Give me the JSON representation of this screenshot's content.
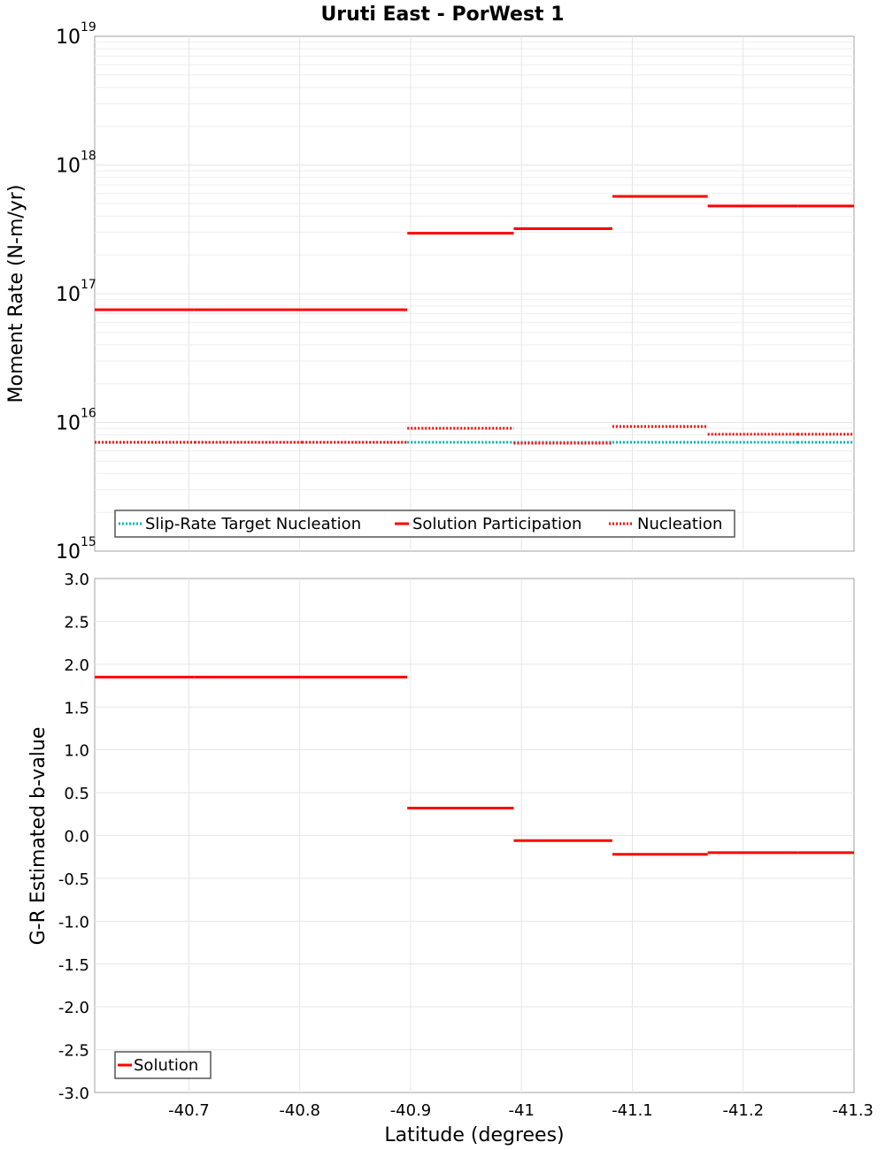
{
  "chart_data": [
    {
      "type": "line",
      "title": "Uruti East - PorWest 1",
      "xlabel": "",
      "ylabel": "Moment Rate (N-m/yr)",
      "yscale": "log",
      "xlim": [
        -40.615,
        -41.3
      ],
      "ylim": [
        1000000000000000.0,
        1e+19
      ],
      "y_ticks": [
        {
          "base": "10",
          "exp": "15"
        },
        {
          "base": "10",
          "exp": "16"
        },
        {
          "base": "10",
          "exp": "17"
        },
        {
          "base": "10",
          "exp": "18"
        },
        {
          "base": "10",
          "exp": "19"
        }
      ],
      "grid": true,
      "legend": {
        "placement": "bottom-left",
        "entries": [
          "Slip-Rate Target Nucleation",
          "Solution Participation",
          "Nucleation"
        ]
      },
      "series": [
        {
          "name": "Slip-Rate Target Nucleation",
          "color": "#00b4b4",
          "style": "dotted",
          "segments": [
            {
              "x0": -40.615,
              "x1": -40.705,
              "y": 7000000000000000.0
            },
            {
              "x0": -40.705,
              "x1": -40.802,
              "y": 7000000000000000.0
            },
            {
              "x0": -40.802,
              "x1": -40.897,
              "y": 7000000000000000.0
            },
            {
              "x0": -40.897,
              "x1": -40.993,
              "y": 7000000000000000.0
            },
            {
              "x0": -40.993,
              "x1": -41.082,
              "y": 7000000000000000.0
            },
            {
              "x0": -41.082,
              "x1": -41.168,
              "y": 7000000000000000.0
            },
            {
              "x0": -41.168,
              "x1": -41.249,
              "y": 7000000000000000.0
            },
            {
              "x0": -41.249,
              "x1": -41.3,
              "y": 7000000000000000.0
            }
          ]
        },
        {
          "name": "Solution Participation",
          "color": "#ff0000",
          "style": "solid",
          "segments": [
            {
              "x0": -40.615,
              "x1": -40.705,
              "y": 7.5e+16
            },
            {
              "x0": -40.705,
              "x1": -40.802,
              "y": 7.5e+16
            },
            {
              "x0": -40.802,
              "x1": -40.897,
              "y": 7.5e+16
            },
            {
              "x0": -40.897,
              "x1": -40.993,
              "y": 2.95e+17
            },
            {
              "x0": -40.993,
              "x1": -41.082,
              "y": 3.2e+17
            },
            {
              "x0": -41.082,
              "x1": -41.168,
              "y": 5.7e+17
            },
            {
              "x0": -41.168,
              "x1": -41.249,
              "y": 4.8e+17
            },
            {
              "x0": -41.249,
              "x1": -41.3,
              "y": 4.8e+17
            }
          ]
        },
        {
          "name": "Nucleation",
          "color": "#ff0000",
          "style": "dotted",
          "segments": [
            {
              "x0": -40.615,
              "x1": -40.705,
              "y": 7000000000000000.0
            },
            {
              "x0": -40.705,
              "x1": -40.802,
              "y": 7000000000000000.0
            },
            {
              "x0": -40.802,
              "x1": -40.897,
              "y": 7000000000000000.0
            },
            {
              "x0": -40.897,
              "x1": -40.993,
              "y": 9000000000000000.0
            },
            {
              "x0": -40.993,
              "x1": -41.082,
              "y": 6900000000000000.0
            },
            {
              "x0": -41.082,
              "x1": -41.168,
              "y": 9300000000000000.0
            },
            {
              "x0": -41.168,
              "x1": -41.249,
              "y": 8100000000000000.0
            },
            {
              "x0": -41.249,
              "x1": -41.3,
              "y": 8100000000000000.0
            }
          ]
        }
      ]
    },
    {
      "type": "line",
      "title": "",
      "xlabel": "Latitude (degrees)",
      "ylabel": "G-R Estimated b-value",
      "xlim": [
        -40.615,
        -41.3
      ],
      "ylim": [
        -3.0,
        3.0
      ],
      "x_ticks": [
        "-40.7",
        "-40.8",
        "-40.9",
        "-41",
        "-41.1",
        "-41.2",
        "-41.3"
      ],
      "x_tick_values": [
        -40.7,
        -40.8,
        -40.9,
        -41.0,
        -41.1,
        -41.2,
        -41.3
      ],
      "y_ticks": [
        "3.0",
        "2.5",
        "2.0",
        "1.5",
        "1.0",
        "0.5",
        "0.0",
        "-0.5",
        "-1.0",
        "-1.5",
        "-2.0",
        "-2.5",
        "-3.0"
      ],
      "y_tick_values": [
        3.0,
        2.5,
        2.0,
        1.5,
        1.0,
        0.5,
        0.0,
        -0.5,
        -1.0,
        -1.5,
        -2.0,
        -2.5,
        -3.0
      ],
      "grid": true,
      "legend": {
        "placement": "bottom-left",
        "entries": [
          "Solution"
        ]
      },
      "series": [
        {
          "name": "Solution",
          "color": "#ff0000",
          "style": "solid",
          "segments": [
            {
              "x0": -40.615,
              "x1": -40.705,
              "y": 1.85
            },
            {
              "x0": -40.705,
              "x1": -40.802,
              "y": 1.85
            },
            {
              "x0": -40.802,
              "x1": -40.897,
              "y": 1.85
            },
            {
              "x0": -40.897,
              "x1": -40.993,
              "y": 0.32
            },
            {
              "x0": -40.993,
              "x1": -41.082,
              "y": -0.06
            },
            {
              "x0": -41.082,
              "x1": -41.168,
              "y": -0.22
            },
            {
              "x0": -41.168,
              "x1": -41.249,
              "y": -0.2
            },
            {
              "x0": -41.249,
              "x1": -41.3,
              "y": -0.2
            }
          ]
        }
      ]
    }
  ]
}
